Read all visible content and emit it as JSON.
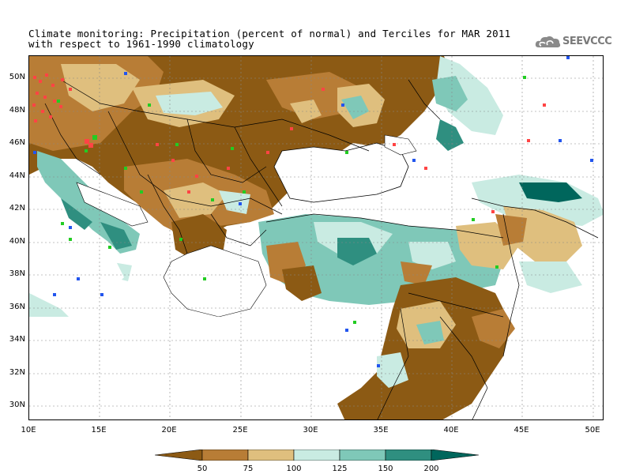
{
  "title": {
    "line1": "Climate monitoring: Precipitation (percent of normal) and Terciles for MAR 2011",
    "line2": "with respect to 1961-1990 climatology"
  },
  "logo": {
    "text": "SEEVCCC",
    "icon": "cloud-icon"
  },
  "axes": {
    "lat_labels": [
      "50N",
      "48N",
      "46N",
      "44N",
      "42N",
      "40N",
      "38N",
      "36N",
      "34N",
      "32N",
      "30N"
    ],
    "lon_labels": [
      "10E",
      "15E",
      "20E",
      "25E",
      "30E",
      "35E",
      "40E",
      "45E",
      "50E"
    ]
  },
  "colorbar": {
    "labels": [
      "50",
      "75",
      "100",
      "125",
      "150",
      "200"
    ],
    "colors": [
      "#8c5a14",
      "#b87d36",
      "#dfbf7e",
      "#c9ebe2",
      "#7fc8b8",
      "#2f8f80",
      "#00665c"
    ]
  },
  "terciles": {
    "above_color": "#22cc22",
    "normal_color": "#2255ee",
    "below_color": "#ff4444"
  }
}
